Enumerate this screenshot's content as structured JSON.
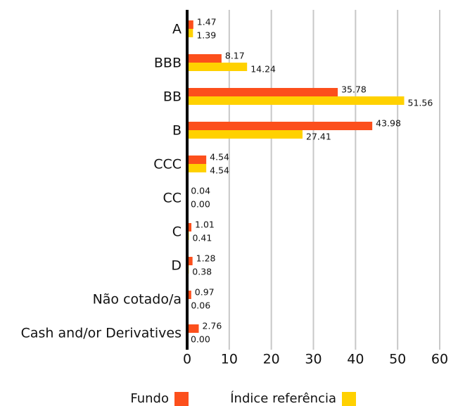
{
  "chart_data": {
    "type": "barh",
    "categories": [
      "A",
      "BBB",
      "BB",
      "B",
      "CCC",
      "CC",
      "C",
      "D",
      "Não cotado/a",
      "Cash and/or Derivatives"
    ],
    "series": [
      {
        "name": "Fundo",
        "color": "#fc4f1c",
        "values": [
          1.47,
          8.17,
          35.78,
          43.98,
          4.54,
          0.04,
          1.01,
          1.28,
          0.97,
          2.76
        ],
        "value_labels": [
          "1.47",
          "8.17",
          "35.78",
          "43.98",
          "4.54",
          "0.04",
          "1.01",
          "1.28",
          "0.97",
          "2.76"
        ]
      },
      {
        "name": "Índice referência",
        "color": "#ffd100",
        "values": [
          1.39,
          14.24,
          51.56,
          27.41,
          4.54,
          0,
          0.41,
          0.38,
          0.06,
          0
        ],
        "value_labels": [
          "1.39",
          "14.24",
          "51.56",
          "27.41",
          "4.54",
          "0.00",
          "0.41",
          "0.38",
          "0.06",
          "0.00"
        ]
      }
    ],
    "xlim": [
      0,
      60
    ],
    "xticks": [
      0,
      10,
      20,
      30,
      40,
      50,
      60
    ],
    "grid": true
  }
}
